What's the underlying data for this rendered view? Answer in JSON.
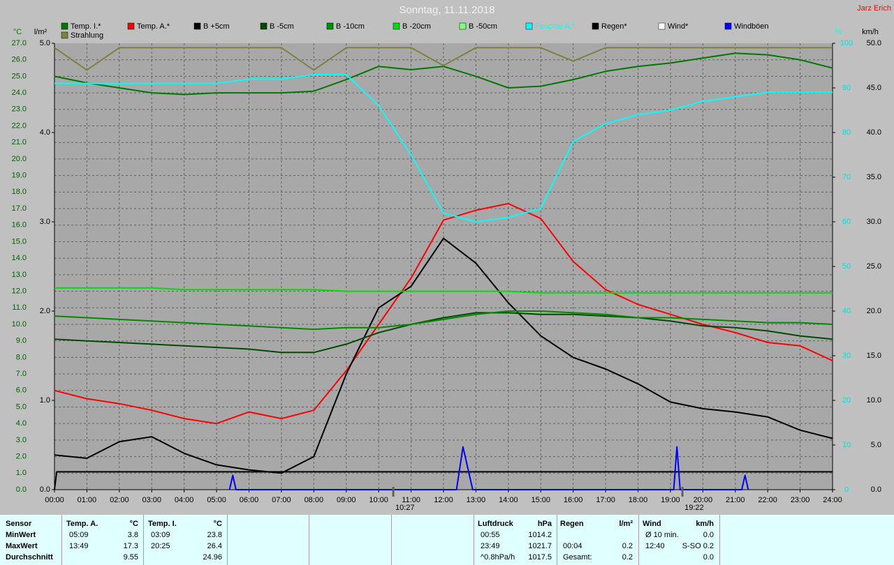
{
  "chart_data": {
    "type": "line",
    "title": "Sonntag, 11.11.2018",
    "author": "Jarz Erich",
    "y_unit": "°C",
    "y2_unit": "l/m²",
    "y3_unit": "%",
    "y4_unit": "km/h",
    "x": [
      0,
      1,
      2,
      3,
      4,
      5,
      6,
      7,
      8,
      9,
      10,
      11,
      12,
      13,
      14,
      15,
      16,
      17,
      18,
      19,
      20,
      21,
      22,
      23,
      24
    ],
    "xlim": [
      0,
      24
    ],
    "xticks": [
      {
        "value": 0,
        "label": "00:00"
      },
      {
        "value": 1,
        "label": "01:00"
      },
      {
        "value": 2,
        "label": "02:00"
      },
      {
        "value": 3,
        "label": "03:00"
      },
      {
        "value": 4,
        "label": "04:00"
      },
      {
        "value": 5,
        "label": "05:00"
      },
      {
        "value": 6,
        "label": "06:00"
      },
      {
        "value": 7,
        "label": "07:00"
      },
      {
        "value": 8,
        "label": "08:00"
      },
      {
        "value": 9,
        "label": "09:00"
      },
      {
        "value": 10,
        "label": "10:00"
      },
      {
        "value": 11,
        "label": "11:00"
      },
      {
        "value": 12,
        "label": "12:00"
      },
      {
        "value": 13,
        "label": "13:00"
      },
      {
        "value": 14,
        "label": "14:00"
      },
      {
        "value": 15,
        "label": "15:00"
      },
      {
        "value": 16,
        "label": "16:00"
      },
      {
        "value": 17,
        "label": "17:00"
      },
      {
        "value": 18,
        "label": "18:00"
      },
      {
        "value": 19,
        "label": "19:00"
      },
      {
        "value": 20,
        "label": "20:00"
      },
      {
        "value": 21,
        "label": "21:00"
      },
      {
        "value": 22,
        "label": "22:00"
      },
      {
        "value": 23,
        "label": "23:00"
      },
      {
        "value": 24,
        "label": "24:00"
      }
    ],
    "ylim": [
      0,
      27
    ],
    "yticks": [
      {
        "value": 0,
        "label": "0.0"
      },
      {
        "value": 1,
        "label": "1.0"
      },
      {
        "value": 2,
        "label": "2.0"
      },
      {
        "value": 3,
        "label": "3.0"
      },
      {
        "value": 4,
        "label": "4.0"
      },
      {
        "value": 5,
        "label": "5.0"
      },
      {
        "value": 6,
        "label": "6.0"
      },
      {
        "value": 7,
        "label": "7.0"
      },
      {
        "value": 8,
        "label": "8.0"
      },
      {
        "value": 9,
        "label": "9.0"
      },
      {
        "value": 10,
        "label": "10.0"
      },
      {
        "value": 11,
        "label": "11.0"
      },
      {
        "value": 12,
        "label": "12.0"
      },
      {
        "value": 13,
        "label": "13.0"
      },
      {
        "value": 14,
        "label": "14.0"
      },
      {
        "value": 15,
        "label": "15.0"
      },
      {
        "value": 16,
        "label": "16.0"
      },
      {
        "value": 17,
        "label": "17.0"
      },
      {
        "value": 18,
        "label": "18.0"
      },
      {
        "value": 19,
        "label": "19.0"
      },
      {
        "value": 20,
        "label": "20.0"
      },
      {
        "value": 21,
        "label": "21.0"
      },
      {
        "value": 22,
        "label": "22.0"
      },
      {
        "value": 23,
        "label": "23.0"
      },
      {
        "value": 24,
        "label": "24.0"
      },
      {
        "value": 25,
        "label": "25.0"
      },
      {
        "value": 26,
        "label": "26.0"
      },
      {
        "value": 27,
        "label": "27.0"
      }
    ],
    "y2lim": [
      0,
      5
    ],
    "y2ticks": [
      {
        "value": 0,
        "label": "0.0"
      },
      {
        "value": 1,
        "label": "1.0"
      },
      {
        "value": 2,
        "label": "2.0"
      },
      {
        "value": 3,
        "label": "3.0"
      },
      {
        "value": 4,
        "label": "4.0"
      },
      {
        "value": 5,
        "label": "5.0"
      }
    ],
    "y3lim": [
      0,
      100
    ],
    "y3ticks": [
      0,
      10,
      20,
      30,
      40,
      50,
      60,
      70,
      80,
      90,
      100
    ],
    "y4lim": [
      0,
      50
    ],
    "y4ticks": [
      {
        "value": 0,
        "label": "0.0"
      },
      {
        "value": 5,
        "label": "5.0"
      },
      {
        "value": 10,
        "label": "10.0"
      },
      {
        "value": 15,
        "label": "15.0"
      },
      {
        "value": 20,
        "label": "20.0"
      },
      {
        "value": 25,
        "label": "25.0"
      },
      {
        "value": 30,
        "label": "30.0"
      },
      {
        "value": 35,
        "label": "35.0"
      },
      {
        "value": 40,
        "label": "40.0"
      },
      {
        "value": 45,
        "label": "45.0"
      },
      {
        "value": 50,
        "label": "50.0"
      }
    ],
    "grid": true,
    "series": [
      {
        "name": "Temp. I.*",
        "color": "#007800",
        "values": [
          25.0,
          24.6,
          24.3,
          24.0,
          23.9,
          24.0,
          24.0,
          24.0,
          24.1,
          24.8,
          25.6,
          25.4,
          25.6,
          25.0,
          24.3,
          24.4,
          24.8,
          25.3,
          25.6,
          25.8,
          26.1,
          26.4,
          26.3,
          26.0,
          25.5
        ]
      },
      {
        "name": "Temp. A.*",
        "color": "#ff0000",
        "values": [
          6.0,
          5.5,
          5.2,
          4.8,
          4.3,
          4.0,
          4.7,
          4.3,
          4.8,
          7.2,
          10.0,
          12.8,
          16.3,
          16.9,
          17.3,
          16.4,
          13.8,
          12.1,
          11.2,
          10.6,
          10.0,
          9.5,
          8.9,
          8.7,
          7.8
        ]
      },
      {
        "name": "B +5cm",
        "color": "#000000",
        "values": [
          2.1,
          1.9,
          2.9,
          3.2,
          2.2,
          1.5,
          1.2,
          1.0,
          2.0,
          7.0,
          11.0,
          12.3,
          15.2,
          13.7,
          11.3,
          9.3,
          8.0,
          7.3,
          6.4,
          5.3,
          4.9,
          4.7,
          4.4,
          3.6,
          3.1
        ]
      },
      {
        "name": "B -5cm",
        "color": "#004a00",
        "values": [
          9.1,
          9.0,
          8.9,
          8.8,
          8.7,
          8.6,
          8.5,
          8.3,
          8.3,
          8.8,
          9.5,
          10.0,
          10.4,
          10.7,
          10.7,
          10.6,
          10.6,
          10.5,
          10.4,
          10.2,
          9.9,
          9.8,
          9.6,
          9.3,
          9.1
        ]
      },
      {
        "name": "B -10cm",
        "color": "#008a00",
        "values": [
          10.5,
          10.4,
          10.3,
          10.2,
          10.1,
          10.0,
          9.9,
          9.8,
          9.7,
          9.8,
          9.8,
          10.0,
          10.3,
          10.6,
          10.8,
          10.8,
          10.7,
          10.6,
          10.4,
          10.4,
          10.3,
          10.2,
          10.1,
          10.1,
          10.0
        ]
      },
      {
        "name": "B -20cm",
        "color": "#00dd00",
        "values": [
          12.2,
          12.2,
          12.2,
          12.2,
          12.1,
          12.1,
          12.1,
          12.1,
          12.1,
          12.0,
          12.0,
          12.0,
          12.0,
          12.0,
          12.0,
          11.9,
          11.9,
          11.9,
          11.9,
          11.9,
          11.9,
          11.9,
          11.9,
          11.9,
          11.9
        ]
      },
      {
        "name": "B -50cm",
        "color": "#80ff80",
        "values": [
          null,
          null,
          null,
          null,
          null,
          null,
          null,
          null,
          null,
          null,
          null,
          null,
          null,
          null,
          null,
          null,
          null,
          null,
          null,
          null,
          null,
          null,
          null,
          null,
          null
        ]
      },
      {
        "name": "Feuchte A.*",
        "color": "#00ffff",
        "axis": "y3",
        "values": [
          91,
          91,
          91,
          91,
          91,
          91,
          92,
          92,
          93,
          93,
          86,
          75,
          62,
          60,
          61,
          63,
          78,
          82,
          84,
          85,
          87,
          88,
          89,
          89,
          89
        ]
      },
      {
        "name": "Regen*",
        "color": "#000000",
        "axis": "y2",
        "x": [
          0,
          0.07,
          24
        ],
        "values": [
          0,
          0.2,
          0.2
        ]
      },
      {
        "name": "Wind*",
        "color": "#ffffff",
        "axis": "y4",
        "values": [
          null,
          null,
          null,
          null,
          null,
          null,
          null,
          null,
          null,
          null,
          null,
          null,
          null,
          null,
          null,
          null,
          null,
          null,
          null,
          null,
          null,
          null,
          null,
          null,
          null
        ]
      },
      {
        "name": "Windböen",
        "color": "#0000ff",
        "axis": "y4",
        "x": [
          5.4,
          5.5,
          5.6,
          12.4,
          12.6,
          12.9,
          19.1,
          19.2,
          19.3,
          21.2,
          21.3,
          21.4
        ],
        "values": [
          0,
          1.6,
          0,
          0,
          4.8,
          0,
          0,
          4.8,
          0,
          0,
          1.6,
          0
        ]
      },
      {
        "name": "Strahlung",
        "color": "#808040",
        "axis": "y2",
        "values": [
          4.95,
          4.7,
          4.95,
          4.95,
          4.95,
          4.95,
          4.95,
          4.95,
          4.7,
          4.95,
          4.95,
          4.95,
          4.75,
          4.95,
          4.95,
          4.95,
          4.8,
          4.95,
          4.95,
          4.95,
          4.95,
          4.95,
          4.95,
          4.95,
          4.95
        ]
      }
    ],
    "annotations": [
      {
        "x": 10.45,
        "text": "10:27"
      },
      {
        "x": 19.37,
        "text": "19:22"
      }
    ]
  },
  "stats": {
    "row_labels": [
      "Sensor",
      "MinWert",
      "MaxWert",
      "Durchschnitt"
    ],
    "columns": [
      {
        "title": "Temp. A.",
        "unit": "°C",
        "rows": [
          [
            "05:09",
            "3.8"
          ],
          [
            "13:49",
            "17.3"
          ],
          [
            null,
            "9.55"
          ]
        ]
      },
      {
        "title": "Temp. I.",
        "unit": "°C",
        "rows": [
          [
            "03:09",
            "23.8"
          ],
          [
            "20:25",
            "26.4"
          ],
          [
            null,
            "24.96"
          ]
        ]
      },
      {
        "title": "Luftdruck",
        "unit": "hPa",
        "rows": [
          [
            "00:55",
            "1014.2"
          ],
          [
            "23:49",
            "1021.7"
          ],
          [
            "^0.8hPa/h",
            "1017.5"
          ]
        ]
      },
      {
        "title": "Regen",
        "unit": "l/m²",
        "rows": [
          [
            null,
            null
          ],
          [
            "00:04",
            "0.2"
          ],
          [
            "Gesamt:",
            "0.2"
          ]
        ]
      },
      {
        "title": "Wind",
        "unit": "km/h",
        "rows": [
          [
            "Ø 10 min.",
            "0.0"
          ],
          [
            "12:40",
            "S-SO 0.2"
          ],
          [
            null,
            "0.0"
          ]
        ]
      }
    ]
  }
}
